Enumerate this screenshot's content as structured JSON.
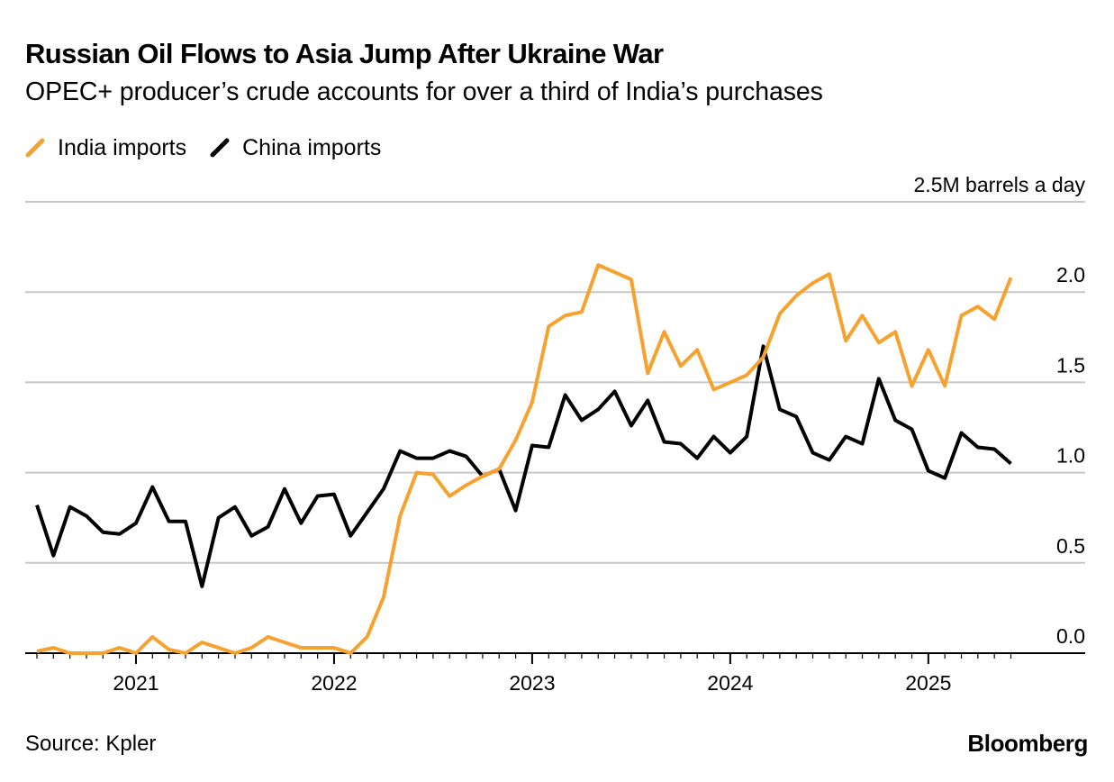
{
  "title": "Russian Oil Flows to Asia Jump After Ukraine War",
  "subtitle": "OPEC+ producer’s crude accounts for over a third of India’s purchases",
  "source": "Source: Kpler",
  "brand": "Bloomberg",
  "colors": {
    "india": "#f7a12e",
    "china": "#000000",
    "grid": "#c8c8c8",
    "axis": "#000000"
  },
  "chart_data": {
    "type": "line",
    "unit_label": "2.5M barrels a day",
    "y_ticks": [
      0.0,
      0.5,
      1.0,
      1.5,
      2.0,
      2.5
    ],
    "y_tick_labels": [
      "0.0",
      "0.5",
      "1.0",
      "1.5",
      "2.0",
      "2.5M barrels a day"
    ],
    "ylim": [
      0,
      2.5
    ],
    "grid": true,
    "legend_position": "top-left",
    "x_start": "2020-07",
    "x_end": "2025-06",
    "x_tick_labels": [
      "2021",
      "2022",
      "2023",
      "2024",
      "2025"
    ],
    "x": [
      "2020-07",
      "2020-08",
      "2020-09",
      "2020-10",
      "2020-11",
      "2020-12",
      "2021-01",
      "2021-02",
      "2021-03",
      "2021-04",
      "2021-05",
      "2021-06",
      "2021-07",
      "2021-08",
      "2021-09",
      "2021-10",
      "2021-11",
      "2021-12",
      "2022-01",
      "2022-02",
      "2022-03",
      "2022-04",
      "2022-05",
      "2022-06",
      "2022-07",
      "2022-08",
      "2022-09",
      "2022-10",
      "2022-11",
      "2022-12",
      "2023-01",
      "2023-02",
      "2023-03",
      "2023-04",
      "2023-05",
      "2023-06",
      "2023-07",
      "2023-08",
      "2023-09",
      "2023-10",
      "2023-11",
      "2023-12",
      "2024-01",
      "2024-02",
      "2024-03",
      "2024-04",
      "2024-05",
      "2024-06",
      "2024-07",
      "2024-08",
      "2024-09",
      "2024-10",
      "2024-11",
      "2024-12",
      "2025-01",
      "2025-02",
      "2025-03",
      "2025-04",
      "2025-05",
      "2025-06"
    ],
    "series": [
      {
        "name": "India imports",
        "color": "#f7a12e",
        "values": [
          0.01,
          0.03,
          0.0,
          0.0,
          0.0,
          0.03,
          0.0,
          0.09,
          0.02,
          0.0,
          0.06,
          0.03,
          0.0,
          0.03,
          0.09,
          0.06,
          0.03,
          0.03,
          0.03,
          0.0,
          0.09,
          0.31,
          0.76,
          1.0,
          0.99,
          0.87,
          0.93,
          0.98,
          1.02,
          1.18,
          1.39,
          1.81,
          1.87,
          1.89,
          2.15,
          2.11,
          2.07,
          1.55,
          1.78,
          1.59,
          1.68,
          1.46,
          1.5,
          1.54,
          1.64,
          1.88,
          1.98,
          2.05,
          2.1,
          1.73,
          1.87,
          1.72,
          1.78,
          1.48,
          1.68,
          1.48,
          1.87,
          1.92,
          1.85,
          2.08
        ]
      },
      {
        "name": "China imports",
        "color": "#000000",
        "values": [
          0.82,
          0.54,
          0.81,
          0.76,
          0.67,
          0.66,
          0.72,
          0.92,
          0.73,
          0.73,
          0.37,
          0.75,
          0.81,
          0.65,
          0.7,
          0.91,
          0.72,
          0.87,
          0.88,
          0.65,
          0.78,
          0.91,
          1.12,
          1.08,
          1.08,
          1.12,
          1.09,
          0.98,
          1.02,
          0.79,
          1.15,
          1.14,
          1.43,
          1.29,
          1.35,
          1.45,
          1.26,
          1.4,
          1.17,
          1.16,
          1.08,
          1.2,
          1.11,
          1.2,
          1.7,
          1.35,
          1.31,
          1.11,
          1.07,
          1.2,
          1.16,
          1.52,
          1.29,
          1.24,
          1.01,
          0.97,
          1.22,
          1.14,
          1.13,
          1.05
        ]
      }
    ]
  }
}
